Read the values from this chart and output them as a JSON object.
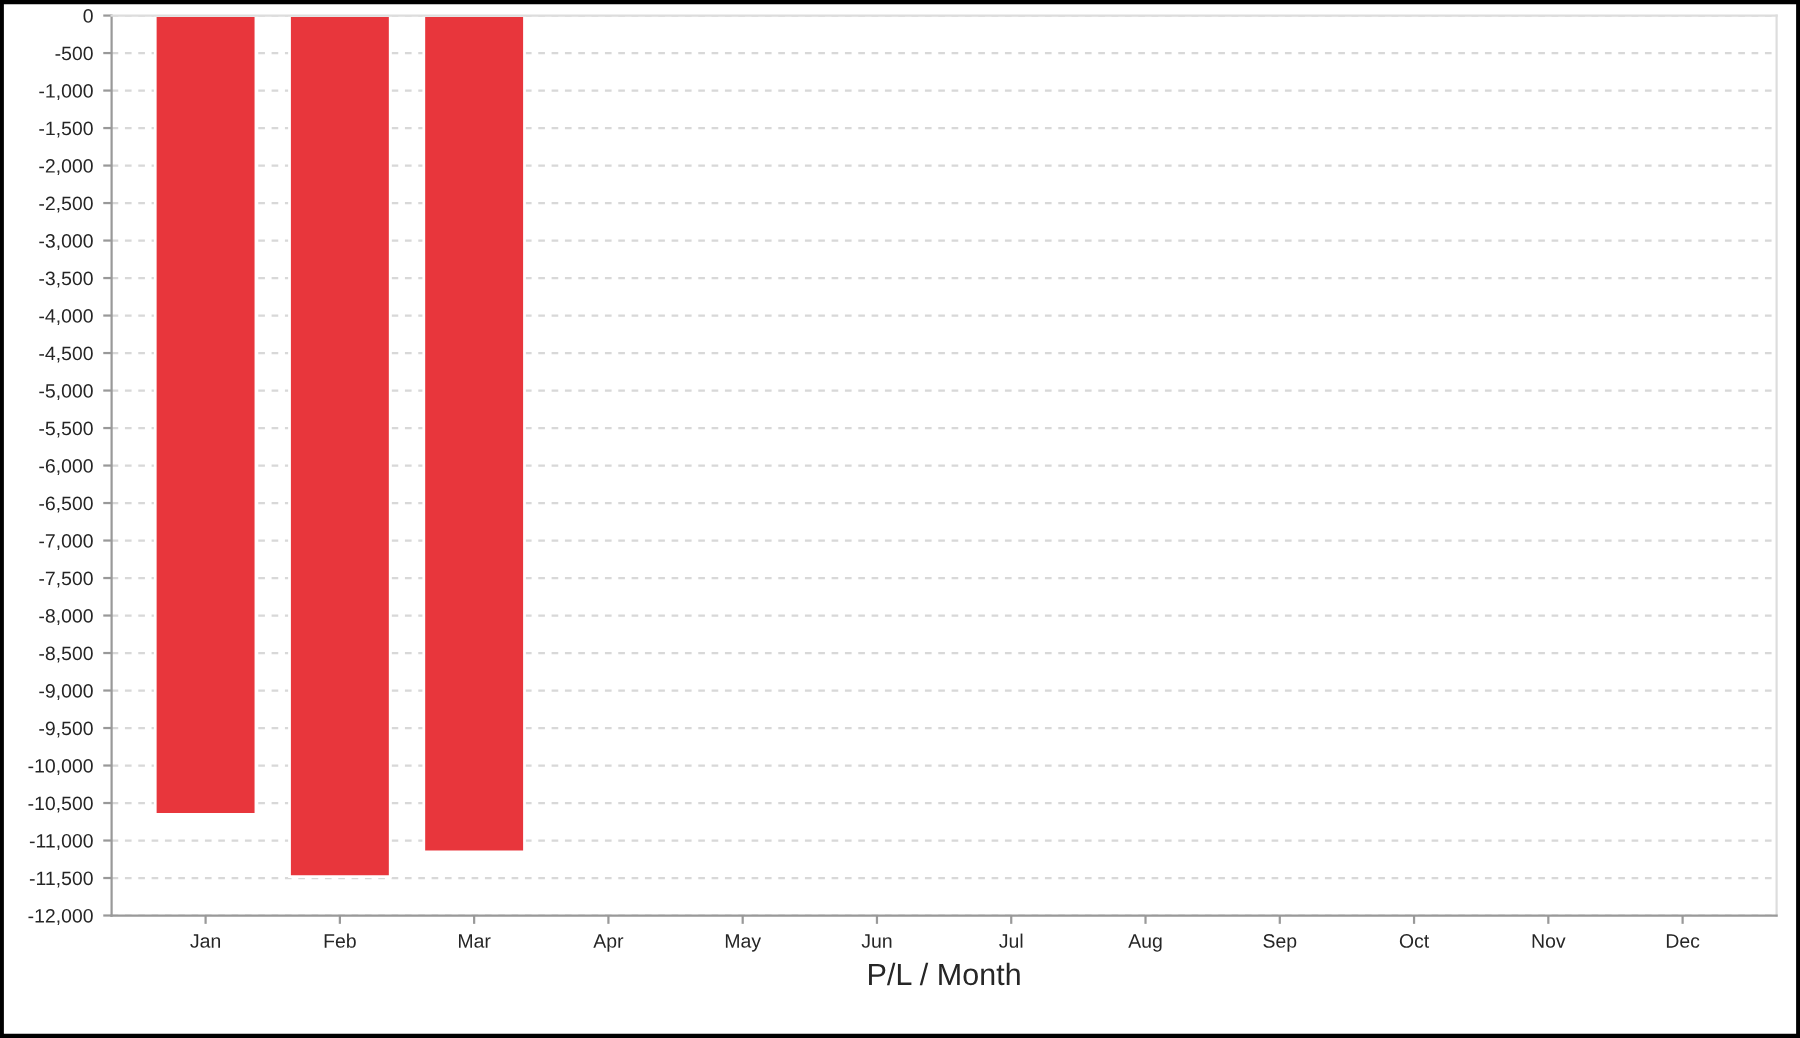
{
  "chart_data": {
    "type": "bar",
    "xlabel": "P/L / Month",
    "categories": [
      "Jan",
      "Feb",
      "Mar",
      "Apr",
      "May",
      "Jun",
      "Jul",
      "Aug",
      "Sep",
      "Oct",
      "Nov",
      "Dec"
    ],
    "values": [
      -10650,
      -11480,
      -11150,
      null,
      null,
      null,
      null,
      null,
      null,
      null,
      null,
      null
    ],
    "color": "#e8363c",
    "ylim": [
      -12000,
      0
    ],
    "yticks": [
      {
        "value": -12000,
        "label": "-12,000"
      },
      {
        "value": -11500,
        "label": "-11,500"
      },
      {
        "value": -11000,
        "label": "-11,000"
      },
      {
        "value": -10500,
        "label": "-10,500"
      },
      {
        "value": -10000,
        "label": "-10,000"
      },
      {
        "value": -9500,
        "label": "-9,500"
      },
      {
        "value": -9000,
        "label": "-9,000"
      },
      {
        "value": -8500,
        "label": "-8,500"
      },
      {
        "value": -8000,
        "label": "-8,000"
      },
      {
        "value": -7500,
        "label": "-7,500"
      },
      {
        "value": -7000,
        "label": "-7,000"
      },
      {
        "value": -6500,
        "label": "-6,500"
      },
      {
        "value": -6000,
        "label": "-6,000"
      },
      {
        "value": -5500,
        "label": "-5,500"
      },
      {
        "value": -5000,
        "label": "-5,000"
      },
      {
        "value": -4500,
        "label": "-4,500"
      },
      {
        "value": -4000,
        "label": "-4,000"
      },
      {
        "value": -3500,
        "label": "-3,500"
      },
      {
        "value": -3000,
        "label": "-3,000"
      },
      {
        "value": -2500,
        "label": "-2,500"
      },
      {
        "value": -2000,
        "label": "-2,000"
      },
      {
        "value": -1500,
        "label": "-1,500"
      },
      {
        "value": -1000,
        "label": "-1,000"
      },
      {
        "value": -500,
        "label": "-500"
      },
      0
    ],
    "grid": "y"
  }
}
